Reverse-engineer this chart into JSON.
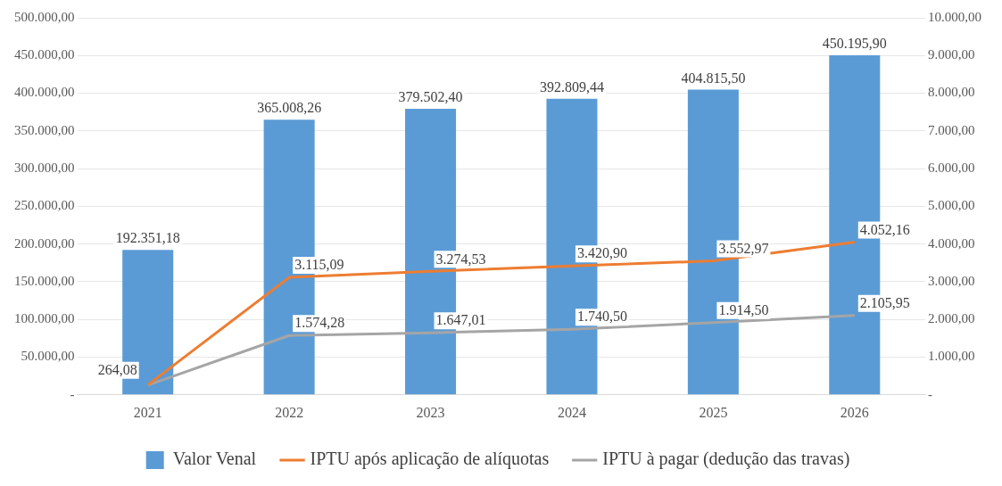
{
  "chart_data": {
    "type": "bar",
    "categories": [
      "2021",
      "2022",
      "2023",
      "2024",
      "2025",
      "2026"
    ],
    "series": [
      {
        "name": "Valor Venal",
        "color": "#5b9bd5",
        "values": [
          192351.18,
          365008.26,
          379502.4,
          392809.44,
          404815.5,
          450195.9
        ],
        "value_labels": [
          "192.351,18",
          "365.008,26",
          "379.502,40",
          "392.809,44",
          "404.815,50",
          "450.195,90"
        ]
      },
      {
        "name": "IPTU após aplicação de alíquotas",
        "type": "line",
        "axis": "y2",
        "color": "#ed7d31",
        "values": [
          264.08,
          3115.09,
          3274.53,
          3420.9,
          3552.97,
          4052.16
        ],
        "value_labels": [
          "264,08",
          "3.115,09",
          "3.274,53",
          "3.420,90",
          "3.552,97",
          "4.052,16"
        ]
      },
      {
        "name": "IPTU à pagar (dedução das travas)",
        "type": "line",
        "axis": "y2",
        "color": "#a5a5a5",
        "values": [
          260,
          1574.28,
          1647.01,
          1740.5,
          1914.5,
          2105.95
        ],
        "value_labels": [
          null,
          "1.574,28",
          "1.647,01",
          "1.740,50",
          "1.914,50",
          "2.105,95"
        ]
      }
    ],
    "ylim": [
      0,
      500000
    ],
    "yticks": [
      {
        "value": 0,
        "label": "-"
      },
      {
        "value": 50000,
        "label": "50.000,00"
      },
      {
        "value": 100000,
        "label": "100.000,00"
      },
      {
        "value": 150000,
        "label": "150.000,00"
      },
      {
        "value": 200000,
        "label": "200.000,00"
      },
      {
        "value": 250000,
        "label": "250.000,00"
      },
      {
        "value": 300000,
        "label": "300.000,00"
      },
      {
        "value": 350000,
        "label": "350.000,00"
      },
      {
        "value": 400000,
        "label": "400.000,00"
      },
      {
        "value": 450000,
        "label": "450.000,00"
      },
      {
        "value": 500000,
        "label": "500.000,00"
      }
    ],
    "y2lim": [
      0,
      10000
    ],
    "y2ticks": [
      {
        "value": 0,
        "label": "-"
      },
      {
        "value": 1000,
        "label": "1.000,00"
      },
      {
        "value": 2000,
        "label": "2.000,00"
      },
      {
        "value": 3000,
        "label": "3.000,00"
      },
      {
        "value": 4000,
        "label": "4.000,00"
      },
      {
        "value": 5000,
        "label": "5.000,00"
      },
      {
        "value": 6000,
        "label": "6.000,00"
      },
      {
        "value": 7000,
        "label": "7.000,00"
      },
      {
        "value": 8000,
        "label": "8.000,00"
      },
      {
        "value": 9000,
        "label": "9.000,00"
      },
      {
        "value": 10000,
        "label": "10.000,00"
      }
    ],
    "grid": "y",
    "legend": "bottom",
    "marker": "none",
    "line_style": "solid"
  }
}
